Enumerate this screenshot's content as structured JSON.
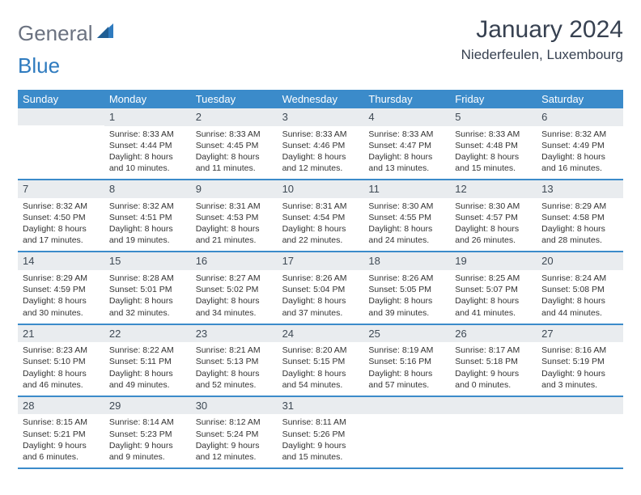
{
  "logo": {
    "part1": "General",
    "part2": "Blue"
  },
  "title": "January 2024",
  "location": "Niederfeulen, Luxembourg",
  "colors": {
    "header_bg": "#3b8bca",
    "header_text": "#ffffff",
    "daynum_bg": "#e9ecef",
    "border": "#3b8bca",
    "logo_gray": "#6b7280",
    "logo_blue": "#2f7bbf"
  },
  "daysOfWeek": [
    "Sunday",
    "Monday",
    "Tuesday",
    "Wednesday",
    "Thursday",
    "Friday",
    "Saturday"
  ],
  "weeks": [
    [
      {
        "blank": true
      },
      {
        "n": "1",
        "sunrise": "Sunrise: 8:33 AM",
        "sunset": "Sunset: 4:44 PM",
        "dl1": "Daylight: 8 hours",
        "dl2": "and 10 minutes."
      },
      {
        "n": "2",
        "sunrise": "Sunrise: 8:33 AM",
        "sunset": "Sunset: 4:45 PM",
        "dl1": "Daylight: 8 hours",
        "dl2": "and 11 minutes."
      },
      {
        "n": "3",
        "sunrise": "Sunrise: 8:33 AM",
        "sunset": "Sunset: 4:46 PM",
        "dl1": "Daylight: 8 hours",
        "dl2": "and 12 minutes."
      },
      {
        "n": "4",
        "sunrise": "Sunrise: 8:33 AM",
        "sunset": "Sunset: 4:47 PM",
        "dl1": "Daylight: 8 hours",
        "dl2": "and 13 minutes."
      },
      {
        "n": "5",
        "sunrise": "Sunrise: 8:33 AM",
        "sunset": "Sunset: 4:48 PM",
        "dl1": "Daylight: 8 hours",
        "dl2": "and 15 minutes."
      },
      {
        "n": "6",
        "sunrise": "Sunrise: 8:32 AM",
        "sunset": "Sunset: 4:49 PM",
        "dl1": "Daylight: 8 hours",
        "dl2": "and 16 minutes."
      }
    ],
    [
      {
        "n": "7",
        "sunrise": "Sunrise: 8:32 AM",
        "sunset": "Sunset: 4:50 PM",
        "dl1": "Daylight: 8 hours",
        "dl2": "and 17 minutes."
      },
      {
        "n": "8",
        "sunrise": "Sunrise: 8:32 AM",
        "sunset": "Sunset: 4:51 PM",
        "dl1": "Daylight: 8 hours",
        "dl2": "and 19 minutes."
      },
      {
        "n": "9",
        "sunrise": "Sunrise: 8:31 AM",
        "sunset": "Sunset: 4:53 PM",
        "dl1": "Daylight: 8 hours",
        "dl2": "and 21 minutes."
      },
      {
        "n": "10",
        "sunrise": "Sunrise: 8:31 AM",
        "sunset": "Sunset: 4:54 PM",
        "dl1": "Daylight: 8 hours",
        "dl2": "and 22 minutes."
      },
      {
        "n": "11",
        "sunrise": "Sunrise: 8:30 AM",
        "sunset": "Sunset: 4:55 PM",
        "dl1": "Daylight: 8 hours",
        "dl2": "and 24 minutes."
      },
      {
        "n": "12",
        "sunrise": "Sunrise: 8:30 AM",
        "sunset": "Sunset: 4:57 PM",
        "dl1": "Daylight: 8 hours",
        "dl2": "and 26 minutes."
      },
      {
        "n": "13",
        "sunrise": "Sunrise: 8:29 AM",
        "sunset": "Sunset: 4:58 PM",
        "dl1": "Daylight: 8 hours",
        "dl2": "and 28 minutes."
      }
    ],
    [
      {
        "n": "14",
        "sunrise": "Sunrise: 8:29 AM",
        "sunset": "Sunset: 4:59 PM",
        "dl1": "Daylight: 8 hours",
        "dl2": "and 30 minutes."
      },
      {
        "n": "15",
        "sunrise": "Sunrise: 8:28 AM",
        "sunset": "Sunset: 5:01 PM",
        "dl1": "Daylight: 8 hours",
        "dl2": "and 32 minutes."
      },
      {
        "n": "16",
        "sunrise": "Sunrise: 8:27 AM",
        "sunset": "Sunset: 5:02 PM",
        "dl1": "Daylight: 8 hours",
        "dl2": "and 34 minutes."
      },
      {
        "n": "17",
        "sunrise": "Sunrise: 8:26 AM",
        "sunset": "Sunset: 5:04 PM",
        "dl1": "Daylight: 8 hours",
        "dl2": "and 37 minutes."
      },
      {
        "n": "18",
        "sunrise": "Sunrise: 8:26 AM",
        "sunset": "Sunset: 5:05 PM",
        "dl1": "Daylight: 8 hours",
        "dl2": "and 39 minutes."
      },
      {
        "n": "19",
        "sunrise": "Sunrise: 8:25 AM",
        "sunset": "Sunset: 5:07 PM",
        "dl1": "Daylight: 8 hours",
        "dl2": "and 41 minutes."
      },
      {
        "n": "20",
        "sunrise": "Sunrise: 8:24 AM",
        "sunset": "Sunset: 5:08 PM",
        "dl1": "Daylight: 8 hours",
        "dl2": "and 44 minutes."
      }
    ],
    [
      {
        "n": "21",
        "sunrise": "Sunrise: 8:23 AM",
        "sunset": "Sunset: 5:10 PM",
        "dl1": "Daylight: 8 hours",
        "dl2": "and 46 minutes."
      },
      {
        "n": "22",
        "sunrise": "Sunrise: 8:22 AM",
        "sunset": "Sunset: 5:11 PM",
        "dl1": "Daylight: 8 hours",
        "dl2": "and 49 minutes."
      },
      {
        "n": "23",
        "sunrise": "Sunrise: 8:21 AM",
        "sunset": "Sunset: 5:13 PM",
        "dl1": "Daylight: 8 hours",
        "dl2": "and 52 minutes."
      },
      {
        "n": "24",
        "sunrise": "Sunrise: 8:20 AM",
        "sunset": "Sunset: 5:15 PM",
        "dl1": "Daylight: 8 hours",
        "dl2": "and 54 minutes."
      },
      {
        "n": "25",
        "sunrise": "Sunrise: 8:19 AM",
        "sunset": "Sunset: 5:16 PM",
        "dl1": "Daylight: 8 hours",
        "dl2": "and 57 minutes."
      },
      {
        "n": "26",
        "sunrise": "Sunrise: 8:17 AM",
        "sunset": "Sunset: 5:18 PM",
        "dl1": "Daylight: 9 hours",
        "dl2": "and 0 minutes."
      },
      {
        "n": "27",
        "sunrise": "Sunrise: 8:16 AM",
        "sunset": "Sunset: 5:19 PM",
        "dl1": "Daylight: 9 hours",
        "dl2": "and 3 minutes."
      }
    ],
    [
      {
        "n": "28",
        "sunrise": "Sunrise: 8:15 AM",
        "sunset": "Sunset: 5:21 PM",
        "dl1": "Daylight: 9 hours",
        "dl2": "and 6 minutes."
      },
      {
        "n": "29",
        "sunrise": "Sunrise: 8:14 AM",
        "sunset": "Sunset: 5:23 PM",
        "dl1": "Daylight: 9 hours",
        "dl2": "and 9 minutes."
      },
      {
        "n": "30",
        "sunrise": "Sunrise: 8:12 AM",
        "sunset": "Sunset: 5:24 PM",
        "dl1": "Daylight: 9 hours",
        "dl2": "and 12 minutes."
      },
      {
        "n": "31",
        "sunrise": "Sunrise: 8:11 AM",
        "sunset": "Sunset: 5:26 PM",
        "dl1": "Daylight: 9 hours",
        "dl2": "and 15 minutes."
      },
      {
        "blank": true
      },
      {
        "blank": true
      },
      {
        "blank": true
      }
    ]
  ]
}
